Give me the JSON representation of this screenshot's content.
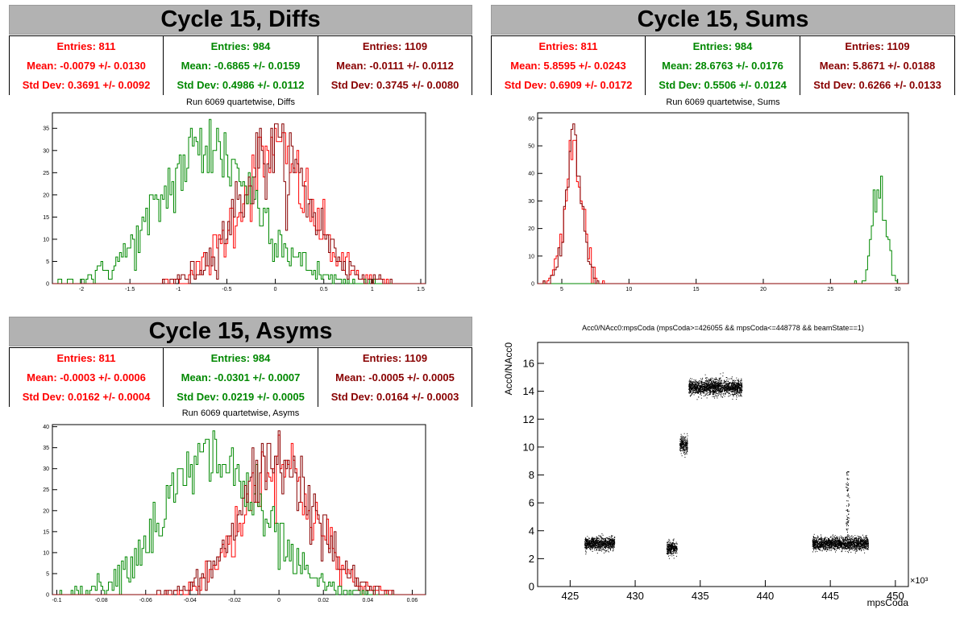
{
  "colors": {
    "c0": "#ff0000",
    "c1": "#008800",
    "c2": "#880000",
    "banner": "#b2b2b2",
    "points": "#000000"
  },
  "panels": [
    {
      "banner": "Cycle 15, Diffs",
      "stats": [
        {
          "entries": "Entries: 811",
          "mean": "Mean: -0.0079 +/- 0.0130",
          "std": "Std Dev: 0.3691 +/- 0.0092"
        },
        {
          "entries": "Entries: 984",
          "mean": "Mean: -0.6865 +/- 0.0159",
          "std": "Std Dev: 0.4986 +/- 0.0112"
        },
        {
          "entries": "Entries: 1109",
          "mean": "Mean: -0.0111 +/- 0.0112",
          "std": "Std Dev: 0.3745 +/- 0.0080"
        }
      ],
      "title": "Run 6069 quartetwise, Diffs"
    },
    {
      "banner": "Cycle 15, Sums",
      "stats": [
        {
          "entries": "Entries: 811",
          "mean": "Mean: 5.8595 +/- 0.0243",
          "std": "Std Dev: 0.6909 +/- 0.0172"
        },
        {
          "entries": "Entries: 984",
          "mean": "Mean: 28.6763 +/- 0.0176",
          "std": "Std Dev: 0.5506 +/- 0.0124"
        },
        {
          "entries": "Entries: 1109",
          "mean": "Mean: 5.8671 +/- 0.0188",
          "std": "Std Dev: 0.6266 +/- 0.0133"
        }
      ],
      "title": "Run 6069 quartetwise, Sums"
    },
    {
      "banner": "Cycle 15, Asyms",
      "stats": [
        {
          "entries": "Entries: 811",
          "mean": "Mean: -0.0003 +/- 0.0006",
          "std": "Std Dev: 0.0162 +/- 0.0004"
        },
        {
          "entries": "Entries: 984",
          "mean": "Mean: -0.0301 +/- 0.0007",
          "std": "Std Dev: 0.0219 +/- 0.0005"
        },
        {
          "entries": "Entries: 1109",
          "mean": "Mean: -0.0005 +/- 0.0005",
          "std": "Std Dev: 0.0164 +/- 0.0003"
        }
      ],
      "title": "Run 6069 quartetwise, Asyms"
    },
    {
      "title": "Acc0/NAcc0:mpsCoda (mpsCoda>=426055 && mpsCoda<=448778 && beamState==1)"
    }
  ],
  "chart_data": [
    {
      "type": "histogram",
      "title": "Run 6069 quartetwise, Diffs",
      "xlim": [
        -2.3,
        1.55
      ],
      "ylim": [
        0,
        38.5
      ],
      "xticks": [
        -2,
        -1.5,
        -1,
        -0.5,
        0,
        0.5,
        1,
        1.5
      ],
      "yticks": [
        0,
        5,
        10,
        15,
        20,
        25,
        30,
        35
      ],
      "series": [
        {
          "color": "#ff0000",
          "entries": 811,
          "mean": -0.0079,
          "std": 0.3691,
          "peak": 35
        },
        {
          "color": "#008800",
          "entries": 984,
          "mean": -0.6865,
          "std": 0.4986,
          "peak": 37
        },
        {
          "color": "#880000",
          "entries": 1109,
          "mean": -0.0111,
          "std": 0.3745,
          "peak": 36
        }
      ]
    },
    {
      "type": "histogram",
      "title": "Run 6069 quartetwise, Sums",
      "xlim": [
        3.2,
        30.8
      ],
      "ylim": [
        0,
        62
      ],
      "xticks": [
        5,
        10,
        15,
        20,
        25,
        30
      ],
      "yticks": [
        0,
        10,
        20,
        30,
        40,
        50,
        60
      ],
      "series": [
        {
          "color": "#ff0000",
          "entries": 811,
          "mean": 5.8595,
          "std": 0.6909,
          "peak": 52
        },
        {
          "color": "#008800",
          "entries": 984,
          "mean": 28.6763,
          "std": 0.5506,
          "peak": 39
        },
        {
          "color": "#880000",
          "entries": 1109,
          "mean": 5.8671,
          "std": 0.6266,
          "peak": 58
        }
      ]
    },
    {
      "type": "histogram",
      "title": "Run 6069 quartetwise, Asyms",
      "xlim": [
        -0.102,
        0.066
      ],
      "ylim": [
        0,
        40.5
      ],
      "xticks": [
        -0.1,
        -0.08,
        -0.06,
        -0.04,
        -0.02,
        0,
        0.02,
        0.04,
        0.06
      ],
      "yticks": [
        0,
        5,
        10,
        15,
        20,
        25,
        30,
        35,
        40
      ],
      "series": [
        {
          "color": "#ff0000",
          "entries": 811,
          "mean": -0.0003,
          "std": 0.0162,
          "peak": 38
        },
        {
          "color": "#008800",
          "entries": 984,
          "mean": -0.0301,
          "std": 0.0219,
          "peak": 39
        },
        {
          "color": "#880000",
          "entries": 1109,
          "mean": -0.0005,
          "std": 0.0164,
          "peak": 39
        }
      ]
    },
    {
      "type": "scatter",
      "title": "Acc0/NAcc0:mpsCoda (mpsCoda>=426055 && mpsCoda<=448778 && beamState==1)",
      "xlabel": "mpsCoda",
      "ylabel": "Acc0/NAcc0",
      "xexponent": "×10³",
      "xlim": [
        422.5,
        451
      ],
      "ylim": [
        0,
        17.5
      ],
      "xticks": [
        425,
        430,
        435,
        440,
        445,
        450
      ],
      "yticks": [
        0,
        2,
        4,
        6,
        8,
        10,
        12,
        14,
        16
      ],
      "clusters": [
        {
          "x": [
            426.1,
            428.4
          ],
          "y": 3.1,
          "spread": 0.45
        },
        {
          "x": [
            432.4,
            433.2
          ],
          "y": 2.8,
          "spread": 0.45
        },
        {
          "x": [
            433.4,
            434.0
          ],
          "y": 10.2,
          "spread": 0.6
        },
        {
          "x": [
            434.1,
            438.2
          ],
          "y": 14.3,
          "spread": 0.55
        },
        {
          "x": [
            443.6,
            447.9
          ],
          "y": 3.1,
          "spread": 0.45
        }
      ]
    }
  ]
}
